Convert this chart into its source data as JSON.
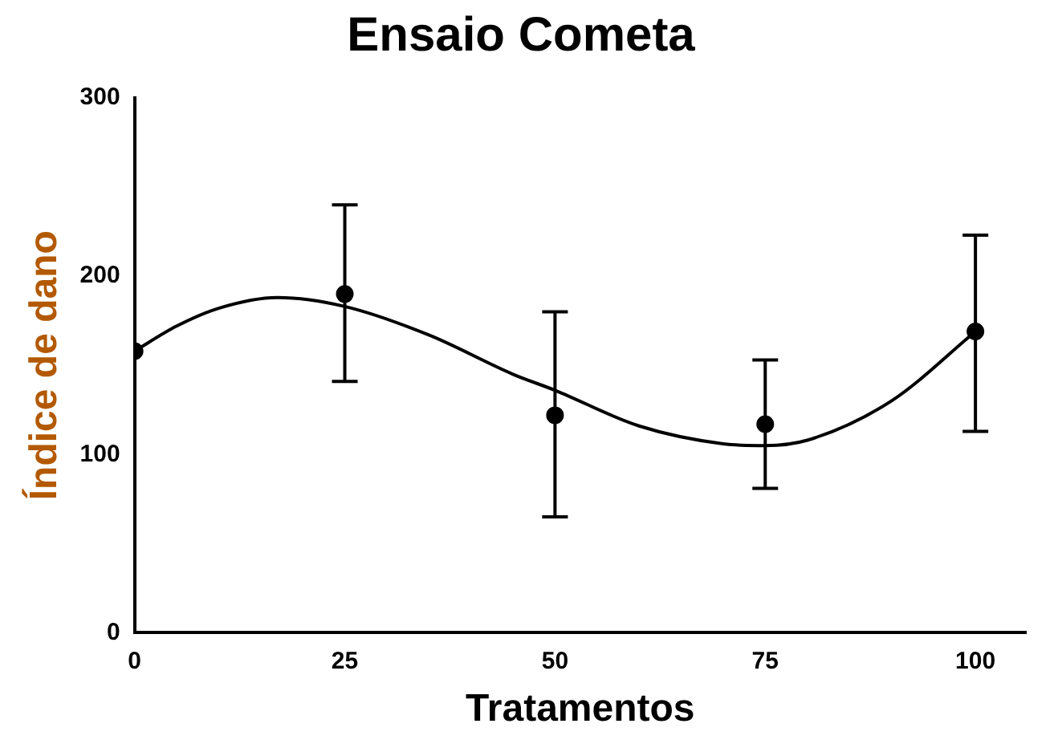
{
  "chart_data": {
    "type": "scatter",
    "title": "Ensaio Cometa",
    "xlabel": "Tratamentos",
    "ylabel": "Índice de dano",
    "x": [
      0,
      25,
      50,
      75,
      100
    ],
    "series": [
      {
        "type": "scatter",
        "color": "#000000",
        "marker": "circle",
        "values": [
          158,
          190,
          122,
          117,
          169
        ],
        "errors": [
          null,
          [
            141,
            240
          ],
          [
            65,
            180
          ],
          [
            81,
            153
          ],
          [
            113,
            223
          ]
        ]
      },
      {
        "type": "line",
        "color": "#000000",
        "marker": "none",
        "line_style": "solid",
        "x": [
          0,
          5,
          10,
          17,
          25,
          35,
          45,
          50,
          60,
          70,
          75,
          80,
          90,
          100
        ],
        "values": [
          158,
          172,
          182,
          188,
          183,
          167,
          145,
          136,
          116,
          106,
          105,
          108,
          130,
          169
        ]
      }
    ],
    "xlim": [
      0,
      106
    ],
    "xticks": [
      0,
      25,
      50,
      75,
      100
    ],
    "ylim": [
      0,
      300
    ],
    "yticks": [
      0,
      100,
      200,
      300
    ],
    "grid": false,
    "legend": false
  }
}
